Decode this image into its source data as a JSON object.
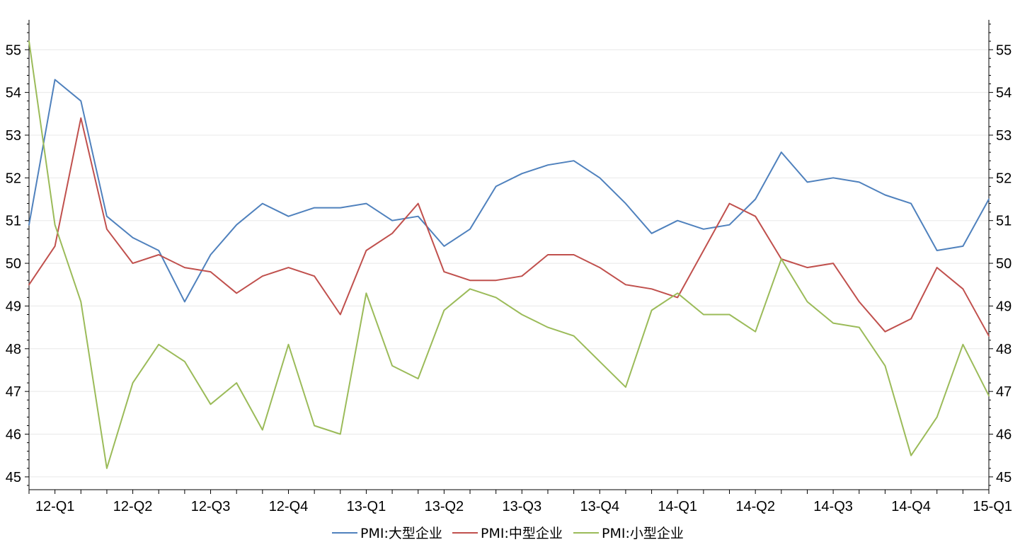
{
  "chart_data": {
    "type": "line",
    "title": "",
    "xlabel": "",
    "ylabel": "",
    "ylim": [
      44.7,
      55.7
    ],
    "yticks": [
      45,
      46,
      47,
      48,
      49,
      50,
      51,
      52,
      53,
      54,
      55
    ],
    "dual_y_axis_mirrored": true,
    "x_tick_labels": [
      "12-Q1",
      "12-Q2",
      "12-Q3",
      "12-Q4",
      "13-Q1",
      "13-Q2",
      "13-Q3",
      "13-Q4",
      "14-Q1",
      "14-Q2",
      "14-Q3",
      "14-Q4",
      "15-Q1"
    ],
    "x_tick_label_month_index": [
      1,
      4,
      7,
      10,
      13,
      16,
      19,
      22,
      25,
      28,
      31,
      34,
      37
    ],
    "months_total": 38,
    "grid": "horizontal",
    "legend_position": "bottom",
    "series": [
      {
        "name": "PMI:大型企业",
        "color": "#4F81BD",
        "values": [
          50.9,
          54.3,
          53.8,
          51.1,
          50.6,
          50.3,
          49.1,
          50.2,
          50.9,
          51.4,
          51.1,
          51.3,
          51.3,
          51.4,
          51.0,
          51.1,
          50.4,
          50.8,
          51.8,
          52.1,
          52.3,
          52.4,
          52.0,
          51.4,
          50.7,
          51.0,
          50.8,
          50.9,
          51.5,
          52.6,
          51.9,
          52.0,
          51.9,
          51.6,
          51.4,
          50.3,
          50.4,
          51.5
        ]
      },
      {
        "name": "PMI:中型企业",
        "color": "#C0504D",
        "values": [
          49.5,
          50.4,
          53.4,
          50.8,
          50.0,
          50.2,
          49.9,
          49.8,
          49.3,
          49.7,
          49.9,
          49.7,
          48.8,
          50.3,
          50.7,
          51.4,
          49.8,
          49.6,
          49.6,
          49.7,
          50.2,
          50.2,
          49.9,
          49.5,
          49.4,
          49.2,
          50.3,
          51.4,
          51.1,
          50.1,
          49.9,
          50.0,
          49.1,
          48.4,
          48.7,
          49.9,
          49.4,
          48.3
        ]
      },
      {
        "name": "PMI:小型企业",
        "color": "#9BBB59",
        "values": [
          55.2,
          50.9,
          49.1,
          45.2,
          47.2,
          48.1,
          47.7,
          46.7,
          47.2,
          46.1,
          48.1,
          46.2,
          46.0,
          49.3,
          47.6,
          47.3,
          48.9,
          49.4,
          49.2,
          48.8,
          48.5,
          48.3,
          47.7,
          47.1,
          48.9,
          49.3,
          48.8,
          48.8,
          48.4,
          50.1,
          49.1,
          48.6,
          48.5,
          47.6,
          45.5,
          46.4,
          48.1,
          46.9
        ]
      }
    ]
  }
}
